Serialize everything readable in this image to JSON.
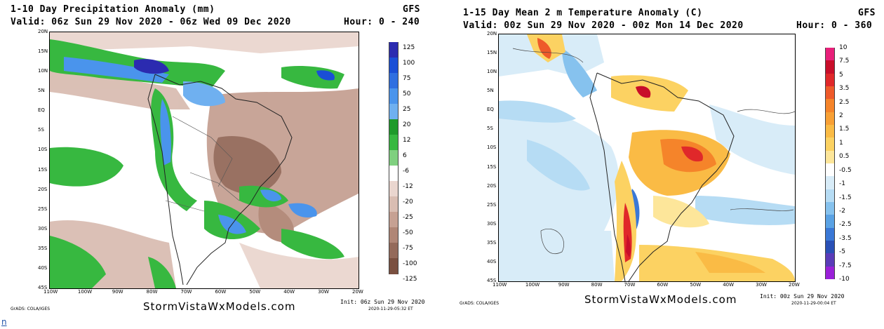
{
  "left": {
    "title_line1": "1-10 Day Precipitation Anomaly (mm)",
    "title_line2": "Valid: 06z Sun 29 Nov 2020 - 06z Wed 09 Dec 2020",
    "model": "GFS",
    "hour": "Hour: 0 - 240",
    "lat_labels": [
      "20N",
      "15N",
      "10N",
      "5N",
      "EQ",
      "5S",
      "10S",
      "15S",
      "20S",
      "25S",
      "30S",
      "35S",
      "40S",
      "45S"
    ],
    "lon_labels": [
      "110W",
      "100W",
      "90W",
      "80W",
      "70W",
      "60W",
      "50W",
      "40W",
      "30W",
      "20W"
    ],
    "colorbar": {
      "labels": [
        "125",
        "100",
        "75",
        "50",
        "25",
        "20",
        "12",
        "6",
        "-6",
        "-12",
        "-20",
        "-25",
        "-50",
        "-75",
        "-100",
        "-125"
      ],
      "colors": [
        "#2b2bb0",
        "#1a4fd6",
        "#2f6fe0",
        "#4a94ec",
        "#6fb0f0",
        "#1e9a2a",
        "#37b840",
        "#7fd07f",
        "#ffffff",
        "#ead6cf",
        "#d9bdb2",
        "#c6a193",
        "#b08676",
        "#946a5a",
        "#7a5040"
      ]
    },
    "brand": "StormVistaWxModels.com",
    "init_line1": "Init: 06z Sun 29 Nov 2020",
    "init_line2": "2020-11-29-05:32 ET",
    "grads": "GrADS: COLA/IGES"
  },
  "right": {
    "title_line1": "1-15 Day Mean 2 m Temperature Anomaly (C)",
    "title_line2": "Valid: 00z Sun 29 Nov 2020 - 00z Mon 14 Dec 2020",
    "model": "GFS",
    "hour": "Hour: 0 - 360",
    "lat_labels": [
      "20N",
      "15N",
      "10N",
      "5N",
      "EQ",
      "5S",
      "10S",
      "15S",
      "20S",
      "25S",
      "30S",
      "35S",
      "40S",
      "45S"
    ],
    "lon_labels": [
      "110W",
      "100W",
      "90W",
      "80W",
      "70W",
      "60W",
      "50W",
      "40W",
      "30W",
      "20W"
    ],
    "colorbar": {
      "labels": [
        "10",
        "7.5",
        "5",
        "3.5",
        "2.5",
        "2",
        "1.5",
        "1",
        "0.5",
        "-0.5",
        "-1",
        "-1.5",
        "-2",
        "-2.5",
        "-3.5",
        "-5",
        "-7.5",
        "-10"
      ],
      "colors": [
        "#e8207a",
        "#c80e2a",
        "#e0282a",
        "#ee5a2a",
        "#f5842a",
        "#f8a035",
        "#fabb45",
        "#fcd262",
        "#fde69a",
        "#ffffff",
        "#d8ecf8",
        "#b6dcf4",
        "#86c2ee",
        "#5aa2e4",
        "#3a78d6",
        "#2a50b6",
        "#5a3cb8",
        "#9a20d8"
      ]
    },
    "brand": "StormVistaWxModels.com",
    "init_line1": "Init: 00z Sun 29 Nov 2020",
    "init_line2": "2020-11-29-00:04 ET",
    "grads": "GrADS: COLA/IGES"
  },
  "stray_glyph": "n"
}
